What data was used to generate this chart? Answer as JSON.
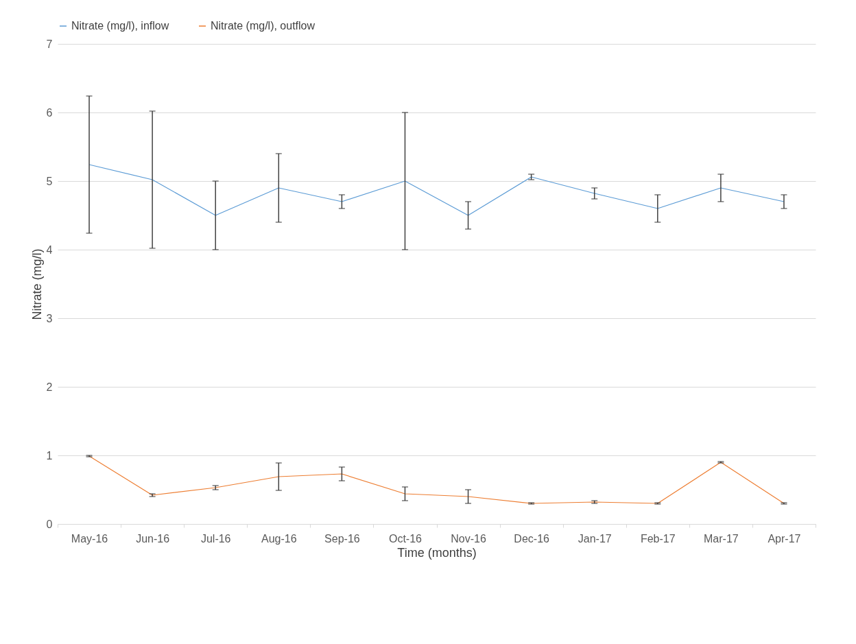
{
  "chart_data": {
    "type": "line",
    "xlabel": "Time (months)",
    "ylabel": "Nitrate (mg/l)",
    "categories": [
      "May-16",
      "Jun-16",
      "Jul-16",
      "Aug-16",
      "Sep-16",
      "Oct-16",
      "Nov-16",
      "Dec-16",
      "Jan-17",
      "Feb-17",
      "Mar-17",
      "Apr-17"
    ],
    "series": [
      {
        "name": "Nitrate (mg/l), inflow",
        "color": "#5b9bd5",
        "values": [
          5.24,
          5.02,
          4.5,
          4.9,
          4.7,
          5.0,
          4.5,
          5.06,
          4.82,
          4.6,
          4.9,
          4.7
        ],
        "errors": [
          1,
          1,
          0.5,
          0.5,
          0.1,
          1,
          0.2,
          0.04,
          0.08,
          0.2,
          0.2,
          0.1
        ]
      },
      {
        "name": "Nitrate (mg/l), outflow",
        "color": "#ed7d31",
        "values": [
          0.99,
          0.42,
          0.53,
          0.69,
          0.73,
          0.44,
          0.4,
          0.3,
          0.32,
          0.3,
          0.9,
          0.3
        ],
        "errors": [
          0.01,
          0.02,
          0.03,
          0.2,
          0.1,
          0.1,
          0.1,
          0.01,
          0.02,
          0.01,
          0.01,
          0.01
        ]
      }
    ],
    "ylim": [
      0,
      7
    ],
    "yticks": [
      0,
      1,
      2,
      3,
      4,
      5,
      6,
      7
    ],
    "grid": "y",
    "legend": "top",
    "marker": "none",
    "line_style": "solid"
  }
}
